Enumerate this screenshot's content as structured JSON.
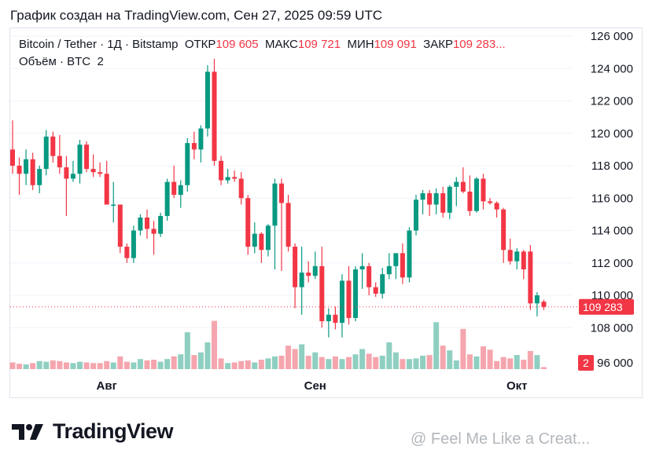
{
  "header": {
    "text": "График создан на TradingView.com, Сен 27, 2025 09:59 UTC"
  },
  "legend": {
    "symbol": "Bitcoin / Tether · 1Д · Bitstamp",
    "open_label": "ОТКР",
    "open": "109 605",
    "high_label": "МАКС",
    "high": "109 721",
    "low_label": "МИН",
    "low": "109 091",
    "close_label": "ЗАКР",
    "close": "109 283..."
  },
  "volume_legend": {
    "label": "Объём · BTC",
    "value": "2"
  },
  "logo": {
    "text": "TradingView"
  },
  "watermark": {
    "text": "@ Feel Me Like a Creat..."
  },
  "colors": {
    "up": "#089981",
    "down": "#f23645",
    "vol_up": "#8fcfc1",
    "vol_down": "#f5a5ad",
    "grid": "#f0f3fa"
  },
  "chart_data": {
    "type": "candlestick",
    "title": "Bitcoin / Tether · 1Д · Bitstamp",
    "ylim": [
      96000,
      126500
    ],
    "y_ticks": [
      126000,
      124000,
      122000,
      120000,
      118000,
      116000,
      114000,
      112000,
      110000,
      108000,
      96000
    ],
    "y_tick_labels": [
      "126 000",
      "124 000",
      "122 000",
      "120 000",
      "118 000",
      "116 000",
      "114 000",
      "112 000",
      "110 000",
      "108 000",
      "96 000"
    ],
    "x_labels": [
      {
        "label": "Авг",
        "index": 14
      },
      {
        "label": "Сен",
        "index": 45
      },
      {
        "label": "Окт",
        "index": 75
      }
    ],
    "last_price": 109283,
    "last_price_label": "109 283",
    "volume_last_label": "2",
    "volume_max": 7500,
    "candles": [
      [
        119000,
        120800,
        117500,
        118000,
        1000
      ],
      [
        118000,
        118500,
        116200,
        117500,
        800
      ],
      [
        117500,
        119000,
        116800,
        118400,
        700
      ],
      [
        118400,
        118800,
        116500,
        116800,
        900
      ],
      [
        116800,
        118000,
        116300,
        117800,
        1200
      ],
      [
        117800,
        120200,
        117400,
        119800,
        1100
      ],
      [
        119800,
        120100,
        118200,
        118600,
        1300
      ],
      [
        118600,
        119900,
        117500,
        117900,
        1200
      ],
      [
        117900,
        118600,
        114900,
        117200,
        1000
      ],
      [
        117200,
        118300,
        117000,
        117500,
        900
      ],
      [
        117500,
        119600,
        116900,
        119300,
        1100
      ],
      [
        119300,
        119500,
        117600,
        117800,
        1000
      ],
      [
        117800,
        118700,
        117300,
        117600,
        900
      ],
      [
        117600,
        118200,
        117300,
        117500,
        900
      ],
      [
        117500,
        118300,
        115600,
        115600,
        1200
      ],
      [
        115600,
        117000,
        114500,
        115600,
        1000
      ],
      [
        115600,
        115600,
        112600,
        113000,
        1900
      ],
      [
        113000,
        113200,
        112000,
        112300,
        1100
      ],
      [
        112300,
        114300,
        112000,
        114000,
        1000
      ],
      [
        114000,
        115000,
        113700,
        114800,
        1500
      ],
      [
        114800,
        115300,
        113500,
        114100,
        1300
      ],
      [
        114100,
        114600,
        112500,
        113800,
        1400
      ],
      [
        113800,
        115100,
        113600,
        114900,
        1100
      ],
      [
        114900,
        117200,
        114600,
        117000,
        1500
      ],
      [
        117000,
        118000,
        116000,
        116200,
        1900
      ],
      [
        116200,
        117100,
        115400,
        116800,
        2200
      ],
      [
        116800,
        119700,
        116400,
        119400,
        5500
      ],
      [
        119400,
        120100,
        118400,
        119000,
        2100
      ],
      [
        119000,
        120500,
        118200,
        120300,
        2500
      ],
      [
        120300,
        124200,
        119800,
        123800,
        4000
      ],
      [
        123800,
        124600,
        118000,
        118300,
        7200
      ],
      [
        118300,
        118600,
        116800,
        117100,
        1600
      ],
      [
        117100,
        117800,
        116900,
        117300,
        900
      ],
      [
        117300,
        117700,
        117000,
        117200,
        1000
      ],
      [
        117200,
        117600,
        115600,
        116000,
        1200
      ],
      [
        116000,
        116200,
        112500,
        113000,
        1300
      ],
      [
        113000,
        114500,
        112600,
        113800,
        1000
      ],
      [
        113800,
        113900,
        112000,
        112800,
        1400
      ],
      [
        112800,
        114400,
        112400,
        114300,
        1600
      ],
      [
        114300,
        117200,
        111600,
        116900,
        1900
      ],
      [
        116900,
        117200,
        111500,
        115700,
        2000
      ],
      [
        115700,
        116200,
        112700,
        113000,
        3500
      ],
      [
        113000,
        113200,
        109200,
        110500,
        3000
      ],
      [
        110500,
        113000,
        108800,
        111400,
        3700
      ],
      [
        111400,
        112100,
        110800,
        111200,
        2000
      ],
      [
        111200,
        112700,
        111000,
        111800,
        2500
      ],
      [
        111800,
        113000,
        108000,
        108400,
        1800
      ],
      [
        108400,
        109200,
        107400,
        108800,
        1500
      ],
      [
        108800,
        109300,
        107900,
        108300,
        1900
      ],
      [
        108300,
        111300,
        107400,
        110900,
        1500
      ],
      [
        110900,
        111800,
        108200,
        108600,
        1800
      ],
      [
        108600,
        111800,
        108400,
        111600,
        2200
      ],
      [
        111600,
        112600,
        110400,
        111800,
        3000
      ],
      [
        111800,
        112000,
        110000,
        110500,
        2300
      ],
      [
        110500,
        110800,
        109900,
        110100,
        1800
      ],
      [
        110100,
        111700,
        109800,
        111300,
        2000
      ],
      [
        111300,
        112600,
        111000,
        111800,
        4000
      ],
      [
        111800,
        112600,
        111000,
        112600,
        2500
      ],
      [
        112600,
        113200,
        110700,
        111100,
        1500
      ],
      [
        111100,
        114200,
        110800,
        114000,
        1500
      ],
      [
        114000,
        116200,
        113700,
        115900,
        1600
      ],
      [
        115900,
        116500,
        115000,
        116300,
        2000
      ],
      [
        116300,
        116500,
        114900,
        115600,
        2100
      ],
      [
        115600,
        116600,
        115000,
        116300,
        7000
      ],
      [
        116300,
        116700,
        114800,
        115100,
        3500
      ],
      [
        115100,
        116800,
        114700,
        116700,
        2800
      ],
      [
        116700,
        117300,
        115500,
        117000,
        1300
      ],
      [
        117000,
        117900,
        116300,
        116400,
        6000
      ],
      [
        116400,
        117400,
        114900,
        115200,
        2200
      ],
      [
        115200,
        117300,
        115100,
        117200,
        1900
      ],
      [
        117200,
        117500,
        115300,
        115800,
        3400
      ],
      [
        115800,
        116000,
        115600,
        115700,
        2900
      ],
      [
        115700,
        115800,
        114800,
        115300,
        1200
      ],
      [
        115300,
        115400,
        112000,
        112800,
        1800
      ],
      [
        112800,
        113500,
        111900,
        112100,
        1600
      ],
      [
        112100,
        112900,
        111600,
        112700,
        2100
      ],
      [
        112700,
        112800,
        111000,
        111600,
        1400
      ],
      [
        112700,
        113100,
        109100,
        109500,
        2700
      ],
      [
        109500,
        110200,
        108700,
        110000,
        2100
      ],
      [
        109605,
        109721,
        109091,
        109283,
        300
      ]
    ]
  }
}
